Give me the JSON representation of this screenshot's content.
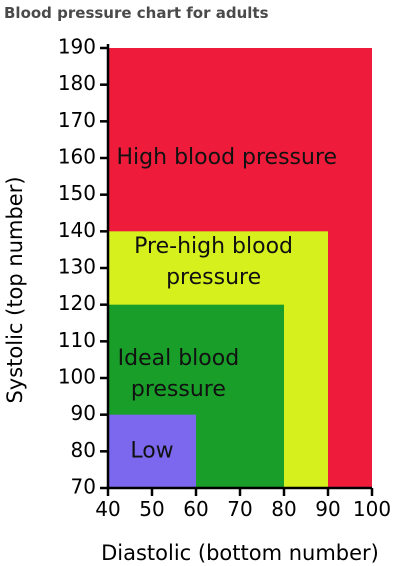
{
  "title": "Blood pressure chart for adults",
  "chart_data": {
    "type": "area",
    "title": "Blood pressure chart for adults",
    "xlabel": "Diastolic (bottom number)",
    "ylabel": "Systolic (top number)",
    "xlim": [
      40,
      100
    ],
    "ylim": [
      70,
      190
    ],
    "xticks": [
      "40",
      "50",
      "60",
      "70",
      "80",
      "90",
      "100"
    ],
    "yticks": [
      "70",
      "80",
      "90",
      "100",
      "110",
      "120",
      "130",
      "140",
      "150",
      "160",
      "170",
      "180",
      "190"
    ],
    "grid": false,
    "zones": [
      {
        "name": "High blood pressure",
        "lines": [
          "High blood pressure"
        ],
        "x": [
          40,
          100
        ],
        "y": [
          70,
          190
        ],
        "color": "#ee1c3a",
        "label_at": [
          67,
          160
        ]
      },
      {
        "name": "Pre-high blood pressure",
        "lines": [
          "Pre-high blood",
          "pressure"
        ],
        "x": [
          40,
          90
        ],
        "y": [
          70,
          140
        ],
        "color": "#d6f01e",
        "label_at": [
          64,
          131.5
        ]
      },
      {
        "name": "Ideal blood pressure",
        "lines": [
          "Ideal blood",
          "pressure"
        ],
        "x": [
          40,
          80
        ],
        "y": [
          70,
          120
        ],
        "color": "#1a9e2a",
        "label_at": [
          56,
          101
        ]
      },
      {
        "name": "Low",
        "lines": [
          "Low"
        ],
        "x": [
          40,
          60
        ],
        "y": [
          70,
          90
        ],
        "color": "#7b68ee",
        "label_at": [
          50,
          80
        ]
      }
    ]
  }
}
